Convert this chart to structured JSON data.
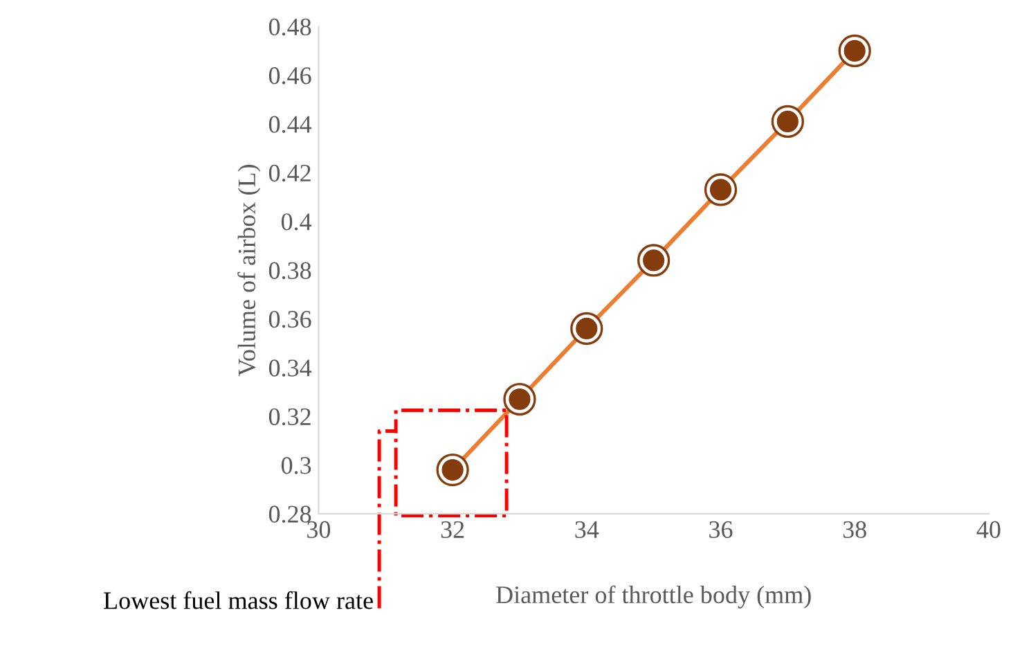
{
  "chart_data": {
    "type": "line",
    "xlabel": "Diameter of throttle body (mm)",
    "ylabel": "Volume of airbox (L)",
    "x": [
      32,
      33,
      34,
      35,
      36,
      37,
      38
    ],
    "series": [
      {
        "color": "#ed7d31",
        "colors": [
          "#843c0c",
          "#843c0c",
          "#843c0c",
          "#843c0c",
          "#843c0c",
          "#843c0c",
          "#843c0c"
        ],
        "values": [
          0.298,
          0.327,
          0.356,
          0.384,
          0.413,
          0.441,
          0.47
        ]
      }
    ],
    "xlim": [
      30,
      40
    ],
    "xticks": [
      30,
      32,
      34,
      36,
      38,
      40
    ],
    "ylim": [
      0.28,
      0.48
    ],
    "yticks": [
      0.28,
      0.3,
      0.32,
      0.34,
      0.36,
      0.38,
      0.4,
      0.42,
      0.44,
      0.46,
      0.48
    ],
    "marker": "circle",
    "line_style": "solid",
    "grid": false,
    "legend": false,
    "annotations": [
      "Lowest fuel mass flow rate"
    ]
  }
}
